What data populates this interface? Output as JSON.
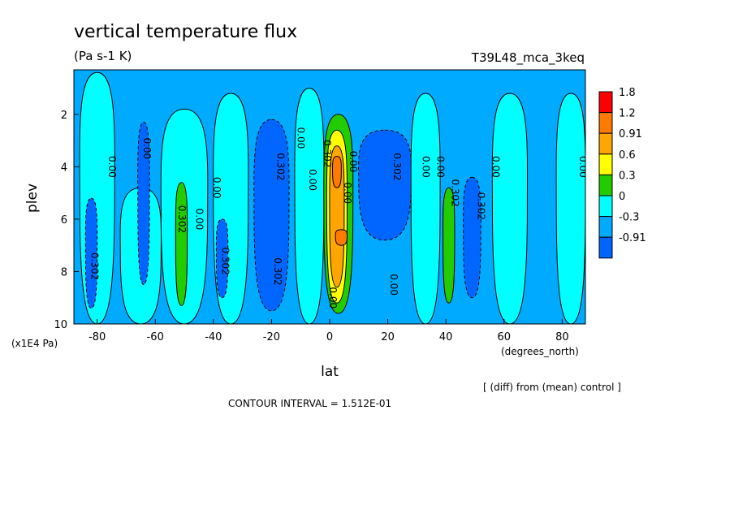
{
  "header": {
    "title": "vertical temperature flux",
    "units": "(Pa s-1 K)",
    "run_id": "T39L48_mca_3keq"
  },
  "footer": {
    "difference_note": "[ (diff) from (mean) control ]",
    "contour_interval": "CONTOUR INTERVAL = 1.512E-01"
  },
  "chart_data": {
    "type": "heatmap",
    "title": "vertical temperature flux",
    "subtitle": "(Pa s-1 K)",
    "xlabel": "lat",
    "xunits": "(degrees_north)",
    "ylabel": "plev",
    "yunits": "(x1E4 Pa)",
    "xlim": [
      -88,
      88
    ],
    "ylim": [
      10,
      0.3
    ],
    "xticks": [
      -80,
      -60,
      -40,
      -20,
      0,
      20,
      40,
      60,
      80
    ],
    "yticks": [
      2,
      4,
      6,
      8,
      10
    ],
    "xtick_labels": [
      "-80",
      "-60",
      "-40",
      "-20",
      "0",
      "20",
      "40",
      "60",
      "80"
    ],
    "ytick_labels": [
      "2",
      "4",
      "6",
      "8",
      "10"
    ],
    "grid": false,
    "legend_position": "right",
    "colorbar": {
      "labels": [
        "1.8",
        "1.2",
        "0.91",
        "0.6",
        "0.3",
        "0",
        "-0.3",
        "-0.91"
      ],
      "colors": [
        "#ff0000",
        "#ff7a00",
        "#ffa500",
        "#ffff00",
        "#22cc00",
        "#00ffff",
        "#00aaff",
        "#0066ff"
      ]
    },
    "levels": [
      -0.91,
      -0.3,
      0,
      0.3,
      0.6,
      0.91,
      1.2,
      1.8
    ],
    "background_color": "#00aaff",
    "regions": [
      {
        "value": 0.15,
        "x": [
          -86,
          -74,
          -74,
          -86
        ],
        "y": [
          0.4,
          0.4,
          10,
          10
        ]
      },
      {
        "value": -0.5,
        "x": [
          -84,
          -80,
          -80,
          -84
        ],
        "y": [
          5.2,
          5.2,
          9.4,
          9.4
        ]
      },
      {
        "value": 0.15,
        "x": [
          -72,
          -58,
          -58,
          -72
        ],
        "y": [
          4.8,
          4.8,
          10,
          10
        ]
      },
      {
        "value": -0.5,
        "x": [
          -66,
          -62,
          -62,
          -66
        ],
        "y": [
          2.3,
          2.3,
          8.5,
          8.5
        ]
      },
      {
        "value": 0.15,
        "x": [
          -58,
          -42,
          -42,
          -58
        ],
        "y": [
          1.8,
          1.8,
          10,
          10
        ]
      },
      {
        "value": 0.45,
        "x": [
          -53,
          -49,
          -49,
          -53
        ],
        "y": [
          4.6,
          4.6,
          9.3,
          9.3
        ]
      },
      {
        "value": 0.15,
        "x": [
          -40,
          -28,
          -28,
          -40
        ],
        "y": [
          1.2,
          1.2,
          10,
          10
        ]
      },
      {
        "value": -0.5,
        "x": [
          -39,
          -35,
          -35,
          -39
        ],
        "y": [
          6.0,
          6.0,
          9.0,
          9.0
        ]
      },
      {
        "value": -0.5,
        "x": [
          -26,
          -14,
          -14,
          -26
        ],
        "y": [
          2.2,
          2.2,
          9.5,
          9.5
        ]
      },
      {
        "value": 0.15,
        "x": [
          -12,
          -2,
          -2,
          -12
        ],
        "y": [
          1.0,
          1.0,
          10,
          10
        ]
      },
      {
        "value": 0.45,
        "x": [
          -2,
          8,
          8,
          -2
        ],
        "y": [
          2.0,
          2.0,
          9.6,
          9.6
        ]
      },
      {
        "value": 0.75,
        "x": [
          -1,
          6,
          6,
          -1
        ],
        "y": [
          2.6,
          2.6,
          9.2,
          9.2
        ]
      },
      {
        "value": 1.05,
        "x": [
          0,
          5,
          5,
          0
        ],
        "y": [
          3.2,
          3.2,
          8.6,
          8.6
        ]
      },
      {
        "value": 1.5,
        "x": [
          1,
          4,
          4,
          1
        ],
        "y": [
          3.6,
          3.6,
          4.8,
          4.8
        ]
      },
      {
        "value": 1.5,
        "x": [
          2,
          6,
          6,
          2
        ],
        "y": [
          6.4,
          6.4,
          7.0,
          7.0
        ]
      },
      {
        "value": -0.5,
        "x": [
          10,
          28,
          28,
          10
        ],
        "y": [
          2.6,
          2.6,
          6.8,
          6.8
        ]
      },
      {
        "value": 0.15,
        "x": [
          28,
          38,
          38,
          28
        ],
        "y": [
          1.2,
          1.2,
          10,
          10
        ]
      },
      {
        "value": 0.45,
        "x": [
          39,
          43,
          43,
          39
        ],
        "y": [
          4.8,
          4.8,
          9.2,
          9.2
        ]
      },
      {
        "value": -0.5,
        "x": [
          46,
          52,
          52,
          46
        ],
        "y": [
          4.4,
          4.4,
          9.0,
          9.0
        ]
      },
      {
        "value": 0.15,
        "x": [
          56,
          68,
          68,
          56
        ],
        "y": [
          1.2,
          1.2,
          10,
          10
        ]
      },
      {
        "value": 0.15,
        "x": [
          78,
          88,
          88,
          78
        ],
        "y": [
          1.2,
          1.2,
          10,
          10
        ]
      }
    ],
    "contour_labels": [
      {
        "text": "0.302",
        "x": -82,
        "y": 7.8
      },
      {
        "text": "0.00",
        "x": -76,
        "y": 4.0
      },
      {
        "text": "0.00",
        "x": -64,
        "y": 3.3
      },
      {
        "text": "0.302",
        "x": -52,
        "y": 6.0
      },
      {
        "text": "0.00",
        "x": -46,
        "y": 6.0
      },
      {
        "text": "0.00",
        "x": -40,
        "y": 4.8
      },
      {
        "text": "0.302",
        "x": -37,
        "y": 7.6
      },
      {
        "text": "0.302",
        "x": -18,
        "y": 4.0
      },
      {
        "text": "0.302",
        "x": -19,
        "y": 8.0
      },
      {
        "text": "0.00",
        "x": -11,
        "y": 2.9
      },
      {
        "text": "0.00",
        "x": -7,
        "y": 4.5
      },
      {
        "text": "0.302",
        "x": -2,
        "y": 3.5
      },
      {
        "text": "0.00",
        "x": 0,
        "y": 9.0
      },
      {
        "text": "0.00",
        "x": 7,
        "y": 3.8
      },
      {
        "text": "0.00",
        "x": 5,
        "y": 5.0
      },
      {
        "text": "0.302",
        "x": 22,
        "y": 4.0
      },
      {
        "text": "0.00",
        "x": 21,
        "y": 8.5
      },
      {
        "text": "0.00",
        "x": 32,
        "y": 4.0
      },
      {
        "text": "0.00",
        "x": 37,
        "y": 4.0
      },
      {
        "text": "0.302",
        "x": 42,
        "y": 5.0
      },
      {
        "text": "0.302",
        "x": 51,
        "y": 5.5
      },
      {
        "text": "0.00",
        "x": 56,
        "y": 4.0
      },
      {
        "text": "0.00",
        "x": 86,
        "y": 4.0
      }
    ]
  }
}
